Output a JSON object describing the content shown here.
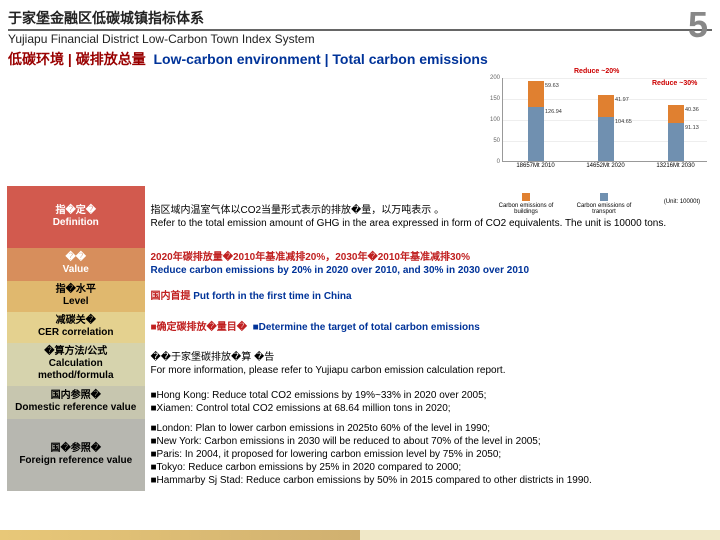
{
  "page_number": "5",
  "header": {
    "title_cn": "于家堡金融区低碳城镇指标体系",
    "title_en": "Yujiapu Financial District Low-Carbon Town Index System",
    "subtitle_cn": "低碳环境 | 碳排放总量",
    "subtitle_en": "Low-carbon environment | Total carbon emissions"
  },
  "chart": {
    "red1": "Reduce ~20%",
    "red2": "Reduce ~30%",
    "y_ticks": [
      "200",
      "150",
      "100",
      "50",
      "0"
    ],
    "series_colors": {
      "buildings": "#e08030",
      "transport": "#7090b0"
    },
    "groups": [
      {
        "x": 25,
        "top_h": 26,
        "top_v": "59.63",
        "bot_h": 54,
        "bot_v": "126.94",
        "label": "18657Mt\n2010"
      },
      {
        "x": 95,
        "top_h": 22,
        "top_v": "41.97",
        "bot_h": 44,
        "bot_v": "104.65",
        "label": "14652Mt\n2020"
      },
      {
        "x": 165,
        "top_h": 18,
        "top_v": "40.36",
        "bot_h": 38,
        "bot_v": "91.13",
        "label": "13216Mt\n2030"
      }
    ],
    "legend": {
      "buildings": "Carbon emissions of buildings",
      "transport": "Carbon emissions of transport",
      "unit": "(Unit: 10000t)"
    }
  },
  "rows": {
    "def": {
      "lbl_cn": "指�定�",
      "lbl_en": "Definition",
      "val_cn": "指区域内温室气体以CO2当量形式表示的排放�量，以万吨表示 。",
      "val_en": "Refer to the total emission amount of GHG in the area expressed in form of CO2 equivalents. The unit is 10000 tons."
    },
    "val": {
      "lbl_cn": "��",
      "lbl_en": "Value",
      "val_cn": "2020年碳排放量�2010年基准减排20%，2030年�2010年基准减排30%",
      "val_en": "Reduce carbon emissions by 20% in 2020 over 2010, and 30% in 2030 over 2010"
    },
    "lvl": {
      "lbl_cn": "指�水平",
      "lbl_en": "Level",
      "val_cn": "国内首提",
      "val_en": "Put forth in the first time in China"
    },
    "cer": {
      "lbl_cn": "减碳关�",
      "lbl_en": "CER correlation",
      "val_cn": "■确定碳排放�量目�",
      "val_en": "■Determine the target of total carbon emissions"
    },
    "calc": {
      "lbl_cn": "�算方法/公式",
      "lbl_en": "Calculation method/formula",
      "val_cn": "��于家堡碳排放�算 �告",
      "val_en": "For more information, please refer to Yujiapu carbon emission calculation report."
    },
    "dom": {
      "lbl_cn": "国内参照�",
      "lbl_en": "Domestic reference value",
      "val1": "■Hong Kong: Reduce total CO2 emissions by 19%~33% in 2020 over 2005;",
      "val2": "■Xiamen: Control total CO2 emissions at 68.64 million tons in 2020;"
    },
    "for": {
      "lbl_cn": "国�参照�",
      "lbl_en": "Foreign reference value",
      "val1": "■London:  Plan to lower carbon emissions in 2025to 60% of  the level in 1990;",
      "val2": "■New York:  Carbon emissions in 2030 will be reduced to about 70% of the level in 2005;",
      "val3": "■Paris: In 2004, it proposed for lowering carbon emission level by 75% in 2050;",
      "val4": "■Tokyo: Reduce carbon emissions by 25% in 2020 compared to 2000;",
      "val5": "■Hammarby Sj Stad: Reduce carbon emissions by 50% in 2015 compared to other districts in 1990."
    }
  }
}
